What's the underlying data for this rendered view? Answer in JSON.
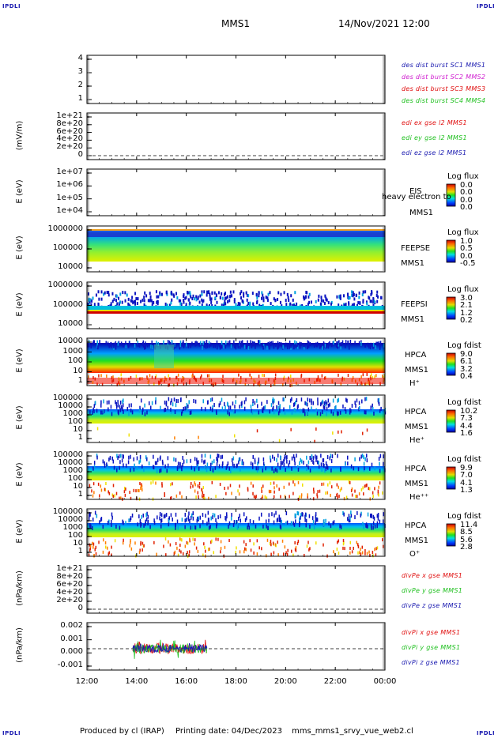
{
  "corners": {
    "tl": "IPDLI",
    "tr": "IPDLI",
    "bl": "IPDLI",
    "br": "IPDLI"
  },
  "header": {
    "spacecraft": "MMS1",
    "datetime": "14/Nov/2021 12:00"
  },
  "footer": {
    "produced": "Produced by cl (IRAP)",
    "printed": "Printing date: 04/Dec/2023",
    "file": "mms_mms1_srvy_vue_web2.cl"
  },
  "colors": {
    "blue": "#1a1ab0",
    "magenta": "#d020d0",
    "red": "#e01010",
    "green": "#20c020"
  },
  "chart_data": {
    "type": "heatmap",
    "x_ticks": [
      "12:00",
      "14:00",
      "16:00",
      "18:00",
      "20:00",
      "22:00",
      "00:00"
    ],
    "panels": [
      {
        "id": "burst",
        "ylabel": "",
        "yticks": [
          "4",
          "3",
          "2",
          "1"
        ],
        "legend": [
          {
            "text": "des dist burst SC1 MMS1",
            "color": "#1a1ab0"
          },
          {
            "text": "des dist burst SC2 MMS2",
            "color": "#d020d0"
          },
          {
            "text": "des dist burst SC3 MMS3",
            "color": "#e01010"
          },
          {
            "text": "des dist burst SC4 MMS4",
            "color": "#20c020"
          }
        ]
      },
      {
        "id": "edi",
        "ylabel": "(mV/m)",
        "yticks": [
          "1e+21",
          "8e+20",
          "6e+20",
          "4e+20",
          "2e+20",
          "0"
        ],
        "legend": [
          {
            "text": "edi ex gse l2 MMS1",
            "color": "#e01010"
          },
          {
            "text": "edi ey gse l2 MMS1",
            "color": "#20c020"
          },
          {
            "text": "edi ez gse l2 MMS1",
            "color": "#1a1ab0"
          }
        ]
      },
      {
        "id": "eis",
        "ylabel": "E (eV)",
        "yticks": [
          "1e+07",
          "1e+06",
          "1e+05",
          "1e+04"
        ],
        "inst": [
          "EIS",
          "MMS1"
        ],
        "note": "heavy electron to",
        "cb_title": "Log flux",
        "cb_values": [
          "0.0",
          "0.0",
          "0.0",
          "0.0"
        ]
      },
      {
        "id": "feepse",
        "ylabel": "E (eV)",
        "yticks": [
          "1000000",
          "100000",
          "10000"
        ],
        "inst": [
          "FEEPSE",
          "MMS1"
        ],
        "cb_title": "Log flux",
        "cb_values": [
          "1.0",
          "0.5",
          "0.0",
          "-0.5"
        ]
      },
      {
        "id": "feepsi",
        "ylabel": "E (eV)",
        "yticks": [
          "1000000",
          "100000",
          "10000"
        ],
        "inst": [
          "FEEPSI",
          "MMS1"
        ],
        "cb_title": "Log flux",
        "cb_values": [
          "3.0",
          "2.1",
          "1.2",
          "0.2"
        ]
      },
      {
        "id": "hpca_h",
        "ylabel": "E (eV)",
        "yticks": [
          "10000",
          "1000",
          "100",
          "10",
          "1"
        ],
        "inst": [
          "HPCA",
          "MMS1"
        ],
        "species": "H⁺",
        "cb_title": "Log fdist",
        "cb_values": [
          "9.0",
          "6.1",
          "3.2",
          "0.4"
        ]
      },
      {
        "id": "hpca_he",
        "ylabel": "E (eV)",
        "yticks": [
          "100000",
          "10000",
          "1000",
          "100",
          "10",
          "1"
        ],
        "inst": [
          "HPCA",
          "MMS1"
        ],
        "species": "He⁺",
        "cb_title": "Log fdist",
        "cb_values": [
          "10.2",
          "7.3",
          "4.4",
          "1.6"
        ]
      },
      {
        "id": "hpca_hepp",
        "ylabel": "E (eV)",
        "yticks": [
          "100000",
          "10000",
          "1000",
          "100",
          "10",
          "1"
        ],
        "inst": [
          "HPCA",
          "MMS1"
        ],
        "species": "He⁺⁺",
        "cb_title": "Log fdist",
        "cb_values": [
          "9.9",
          "7.0",
          "4.1",
          "1.3"
        ]
      },
      {
        "id": "hpca_o",
        "ylabel": "E (eV)",
        "yticks": [
          "100000",
          "10000",
          "1000",
          "100",
          "10",
          "1"
        ],
        "inst": [
          "HPCA",
          "MMS1"
        ],
        "species": "O⁺",
        "cb_title": "Log fdist",
        "cb_values": [
          "11.4",
          "8.5",
          "5.6",
          "2.8"
        ]
      },
      {
        "id": "divpe",
        "ylabel": "(nPa/km)",
        "yticks": [
          "1e+21",
          "8e+20",
          "6e+20",
          "4e+20",
          "2e+20",
          "0"
        ],
        "legend": [
          {
            "text": "divPe x gse MMS1",
            "color": "#e01010"
          },
          {
            "text": "divPe y gse MMS1",
            "color": "#20c020"
          },
          {
            "text": "divPe z gse MMS1",
            "color": "#1a1ab0"
          }
        ]
      },
      {
        "id": "divpi",
        "ylabel": "(nPa/km)",
        "yticks": [
          "0.002",
          "0.001",
          "0.000",
          "-0.001"
        ],
        "legend": [
          {
            "text": "divPi x gse MMS1",
            "color": "#e01010"
          },
          {
            "text": "divPi y gse MMS1",
            "color": "#20c020"
          },
          {
            "text": "divPi z gse MMS1",
            "color": "#1a1ab0"
          }
        ]
      }
    ]
  }
}
